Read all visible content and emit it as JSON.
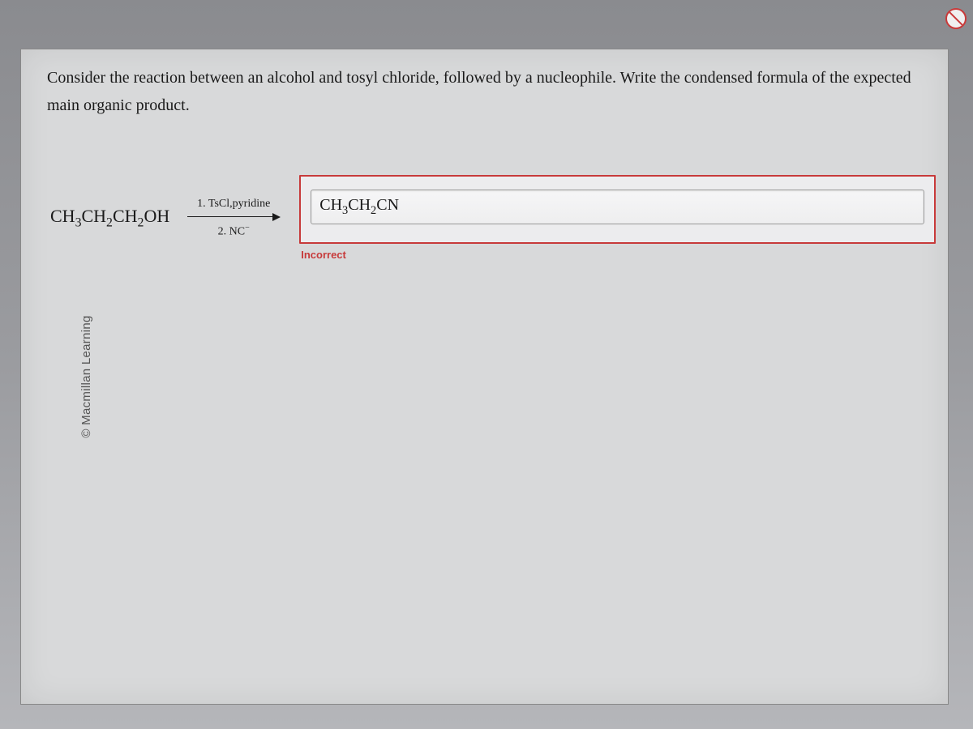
{
  "colors": {
    "frame_bg": "#d8d9da",
    "text": "#1a1a1a",
    "error_border": "#c73a3a",
    "error_text": "#c73a3a",
    "input_bg": "#f6f6f7",
    "input_border": "#999999"
  },
  "copyright": "© Macmillan Learning",
  "question": "Consider the reaction between an alcohol and tosyl chloride, followed by a nucleophile. Write the condensed formula of the expected main organic product.",
  "reaction": {
    "reactant_html": "CH<sub>3</sub>CH<sub>2</sub>CH<sub>2</sub>OH",
    "arrow_top": "1. TsCl,pyridine",
    "arrow_bottom_html": "2. NC<sup>−</sup>",
    "answer_value_html": "CH<sub>3</sub>CH<sub>2</sub>CN"
  },
  "feedback": {
    "status": "Incorrect",
    "color": "#c73a3a"
  }
}
